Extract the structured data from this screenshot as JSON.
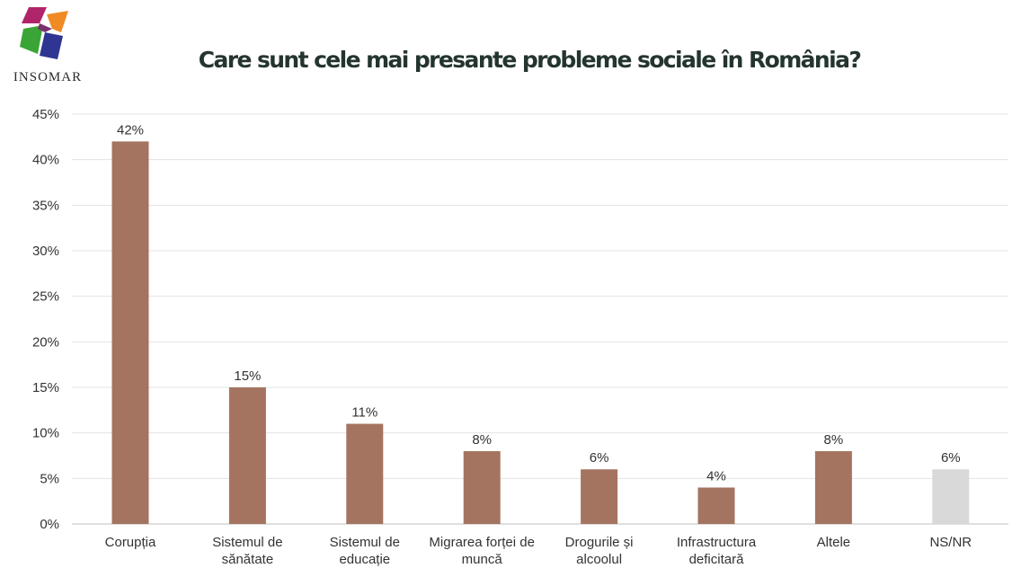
{
  "brand": {
    "logo_text": "INSOMAR"
  },
  "chart_data": {
    "type": "bar",
    "title": "Care sunt cele mai presante probleme sociale în România?",
    "xlabel": "",
    "ylabel": "",
    "categories": [
      [
        "Corupția"
      ],
      [
        "Sistemul de",
        "sănătate"
      ],
      [
        "Sistemul de",
        "educație"
      ],
      [
        "Migrarea forței de",
        "muncă"
      ],
      [
        "Drogurile și",
        "alcoolul"
      ],
      [
        "Infrastructura",
        "deficitară"
      ],
      [
        "Altele"
      ],
      [
        "NS/NR"
      ]
    ],
    "values": [
      42,
      15,
      11,
      8,
      6,
      4,
      8,
      6
    ],
    "data_labels": [
      "42%",
      "15%",
      "11%",
      "8%",
      "6%",
      "4%",
      "8%",
      "6%"
    ],
    "bar_colors": [
      "#a47461",
      "#a47461",
      "#a47461",
      "#a47461",
      "#a47461",
      "#a47461",
      "#a47461",
      "#d9d9d9"
    ],
    "ylim": [
      0,
      45
    ],
    "yticks": [
      0,
      5,
      10,
      15,
      20,
      25,
      30,
      35,
      40,
      45
    ],
    "ytick_labels": [
      "0%",
      "5%",
      "10%",
      "15%",
      "20%",
      "25%",
      "30%",
      "35%",
      "40%",
      "45%"
    ],
    "grid": true,
    "legend": "none"
  }
}
